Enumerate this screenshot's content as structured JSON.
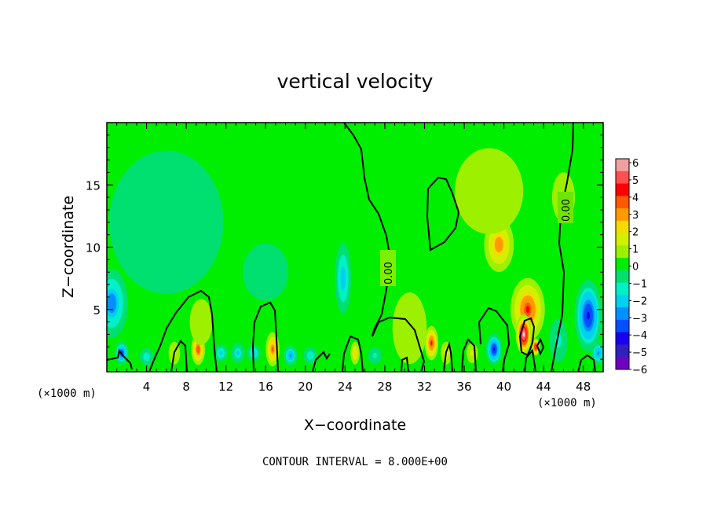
{
  "chart_data": {
    "type": "heatmap",
    "title": "vertical velocity",
    "xlabel": "X−coordinate",
    "ylabel": "Z−coordinate",
    "x_unit_left": "(×1000 m)",
    "x_unit_right": "(×1000 m)",
    "xlim": [
      0,
      50
    ],
    "ylim": [
      0,
      20
    ],
    "x_ticks": [
      4,
      8,
      12,
      16,
      20,
      24,
      28,
      32,
      36,
      40,
      44,
      48
    ],
    "y_ticks": [
      5,
      10,
      15
    ],
    "colorbar": {
      "min": -6,
      "max": 6,
      "tick_labels": [
        "6",
        "5",
        "4",
        "3",
        "2",
        "1",
        "0",
        "−1",
        "−2",
        "−3",
        "−4",
        "−5",
        "−6"
      ],
      "colors": [
        "#f0a0a0",
        "#ff5050",
        "#ff0000",
        "#ff5a00",
        "#ff9a00",
        "#f5dc00",
        "#d2f000",
        "#9cf000",
        "#00ee00",
        "#00e070",
        "#00f0c8",
        "#00d0f0",
        "#0090ff",
        "#0050ff",
        "#1a00f0",
        "#3020c0",
        "#7000c0"
      ]
    },
    "contour_labels": [
      "0.00",
      "0.00"
    ],
    "footer": "CONTOUR INTERVAL = 8.000E+00",
    "features": [
      {
        "x": 0.5,
        "z": 5.5,
        "value": -3.2,
        "sx": 1.4,
        "sz": 2.4
      },
      {
        "x": 1.5,
        "z": 1.5,
        "value": -4.0,
        "sx": 0.6,
        "sz": 0.8
      },
      {
        "x": 4,
        "z": 1.2,
        "value": -1.8,
        "sx": 0.6,
        "sz": 0.6
      },
      {
        "x": 6.8,
        "z": 1.5,
        "value": 1.5,
        "sx": 0.5,
        "sz": 0.8
      },
      {
        "x": 9.2,
        "z": 1.8,
        "value": 4.0,
        "sx": 0.6,
        "sz": 1.1
      },
      {
        "x": 9.5,
        "z": 4.0,
        "value": 1.0,
        "sx": 1.0,
        "sz": 1.6
      },
      {
        "x": 11.5,
        "z": 1.5,
        "value": -2.2,
        "sx": 0.6,
        "sz": 0.6
      },
      {
        "x": 13.2,
        "z": 1.5,
        "value": -2.0,
        "sx": 0.6,
        "sz": 0.7
      },
      {
        "x": 14.8,
        "z": 1.5,
        "value": -2.2,
        "sx": 0.6,
        "sz": 0.6
      },
      {
        "x": 16.7,
        "z": 1.8,
        "value": 3.5,
        "sx": 0.6,
        "sz": 1.2
      },
      {
        "x": 18.5,
        "z": 1.3,
        "value": -3.0,
        "sx": 0.6,
        "sz": 0.7
      },
      {
        "x": 20.5,
        "z": 1.3,
        "value": -1.8,
        "sx": 0.6,
        "sz": 0.6
      },
      {
        "x": 23.8,
        "z": 7.5,
        "value": -2.6,
        "sx": 0.7,
        "sz": 2.5
      },
      {
        "x": 25.0,
        "z": 1.5,
        "value": 2.5,
        "sx": 0.4,
        "sz": 0.8
      },
      {
        "x": 27.0,
        "z": 1.3,
        "value": -1.2,
        "sx": 0.6,
        "sz": 0.6
      },
      {
        "x": 30.5,
        "z": 3.5,
        "value": 1.0,
        "sx": 1.5,
        "sz": 2.5
      },
      {
        "x": 32.7,
        "z": 2.3,
        "value": 4.2,
        "sx": 0.6,
        "sz": 1.2
      },
      {
        "x": 34.2,
        "z": 1.5,
        "value": 2.0,
        "sx": 0.5,
        "sz": 0.8
      },
      {
        "x": 36.8,
        "z": 1.5,
        "value": 1.2,
        "sx": 0.5,
        "sz": 0.7
      },
      {
        "x": 39.0,
        "z": 1.8,
        "value": -4.5,
        "sx": 0.7,
        "sz": 1.1
      },
      {
        "x": 39.5,
        "z": 10.2,
        "value": 3.2,
        "sx": 1.3,
        "sz": 1.9
      },
      {
        "x": 38.5,
        "z": 14.5,
        "value": 0.8,
        "sx": 3.0,
        "sz": 3.0
      },
      {
        "x": 42.4,
        "z": 5.0,
        "value": 4.2,
        "sx": 1.5,
        "sz": 2.2
      },
      {
        "x": 42.0,
        "z": 3.0,
        "value": 6.5,
        "sx": 0.7,
        "sz": 1.4
      },
      {
        "x": 43.2,
        "z": 2.0,
        "value": 5.5,
        "sx": 0.35,
        "sz": 0.6
      },
      {
        "x": 45.5,
        "z": 2.5,
        "value": -1.5,
        "sx": 0.8,
        "sz": 1.5
      },
      {
        "x": 48.5,
        "z": 4.5,
        "value": -4.5,
        "sx": 1.2,
        "sz": 2.5
      },
      {
        "x": 49.5,
        "z": 1.5,
        "value": -3.0,
        "sx": 0.6,
        "sz": 0.8
      },
      {
        "x": 6,
        "z": 12,
        "value": -0.9,
        "sx": 5.0,
        "sz": 5.0
      },
      {
        "x": 16,
        "z": 8,
        "value": -0.6,
        "sx": 4.0,
        "sz": 4.0
      },
      {
        "x": 46,
        "z": 14,
        "value": 0.5,
        "sx": 2.0,
        "sz": 3.5
      }
    ]
  }
}
